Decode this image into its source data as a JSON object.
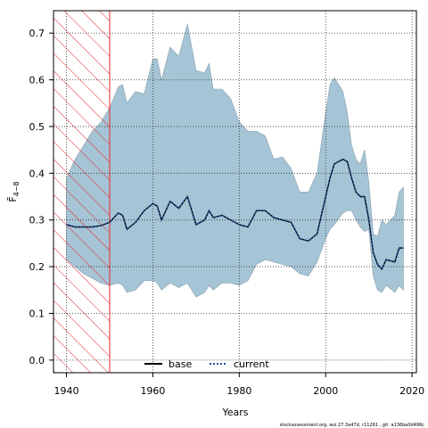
{
  "chart_data": {
    "type": "line",
    "xlabel": "Years",
    "ylabel": "F̄",
    "ylabel_sub": "4−8",
    "footer": "stockassessment.org, wsi.27.3a47d, r11261 , git: a136ba0d496c",
    "x": [
      1940,
      1942,
      1944,
      1946,
      1948,
      1950,
      1952,
      1953,
      1954,
      1956,
      1958,
      1960,
      1961,
      1962,
      1964,
      1966,
      1968,
      1970,
      1972,
      1973,
      1974,
      1976,
      1978,
      1980,
      1982,
      1984,
      1986,
      1988,
      1990,
      1992,
      1994,
      1996,
      1998,
      2000,
      2001,
      2002,
      2004,
      2005,
      2006,
      2007,
      2008,
      2009,
      2010,
      2011,
      2012,
      2013,
      2014,
      2016,
      2017,
      2018
    ],
    "band": {
      "color": "#a5c4d5",
      "edge": "#8aa0ad",
      "upper": [
        0.39,
        0.43,
        0.46,
        0.49,
        0.51,
        0.54,
        0.585,
        0.59,
        0.55,
        0.575,
        0.57,
        0.645,
        0.645,
        0.6,
        0.67,
        0.65,
        0.72,
        0.62,
        0.615,
        0.635,
        0.58,
        0.58,
        0.56,
        0.51,
        0.49,
        0.49,
        0.48,
        0.43,
        0.435,
        0.41,
        0.36,
        0.36,
        0.4,
        0.53,
        0.59,
        0.605,
        0.575,
        0.53,
        0.46,
        0.43,
        0.42,
        0.45,
        0.38,
        0.27,
        0.265,
        0.3,
        0.29,
        0.31,
        0.36,
        0.37
      ],
      "lower": [
        0.215,
        0.2,
        0.185,
        0.175,
        0.165,
        0.16,
        0.165,
        0.16,
        0.145,
        0.15,
        0.17,
        0.17,
        0.165,
        0.15,
        0.165,
        0.155,
        0.165,
        0.135,
        0.145,
        0.16,
        0.15,
        0.165,
        0.165,
        0.16,
        0.17,
        0.205,
        0.215,
        0.21,
        0.205,
        0.2,
        0.185,
        0.18,
        0.21,
        0.26,
        0.28,
        0.29,
        0.315,
        0.32,
        0.32,
        0.3,
        0.285,
        0.275,
        0.28,
        0.18,
        0.15,
        0.145,
        0.16,
        0.145,
        0.16,
        0.15
      ]
    },
    "series": [
      {
        "name": "base",
        "color": "#000000",
        "dash": false,
        "values": [
          0.29,
          0.285,
          0.285,
          0.285,
          0.288,
          0.295,
          0.315,
          0.31,
          0.28,
          0.295,
          0.32,
          0.335,
          0.33,
          0.3,
          0.34,
          0.325,
          0.35,
          0.29,
          0.3,
          0.32,
          0.305,
          0.31,
          0.3,
          0.29,
          0.285,
          0.32,
          0.32,
          0.305,
          0.3,
          0.295,
          0.26,
          0.255,
          0.27,
          0.35,
          0.39,
          0.42,
          0.43,
          0.425,
          0.39,
          0.36,
          0.35,
          0.35,
          0.3,
          0.23,
          0.205,
          0.195,
          0.215,
          0.21,
          0.24,
          0.24
        ]
      },
      {
        "name": "current",
        "color": "#1f4e9a",
        "dash": true,
        "values": [
          0.29,
          0.285,
          0.285,
          0.285,
          0.288,
          0.295,
          0.315,
          0.31,
          0.28,
          0.295,
          0.32,
          0.335,
          0.33,
          0.3,
          0.34,
          0.325,
          0.35,
          0.29,
          0.3,
          0.32,
          0.305,
          0.31,
          0.3,
          0.29,
          0.285,
          0.32,
          0.32,
          0.305,
          0.3,
          0.295,
          0.26,
          0.255,
          0.27,
          0.35,
          0.39,
          0.42,
          0.43,
          0.425,
          0.39,
          0.36,
          0.35,
          0.35,
          0.3,
          0.23,
          0.205,
          0.195,
          0.215,
          0.21,
          0.24,
          0.24
        ]
      }
    ],
    "hatch": {
      "range": [
        1937,
        1950
      ],
      "color": "#e8262b"
    },
    "xlim": [
      1937,
      2021
    ],
    "ylim": [
      -0.027,
      0.748
    ],
    "xticks": [
      1940,
      1960,
      1980,
      2000,
      2020
    ],
    "yticks": [
      {
        "value": 0,
        "label": "0.0"
      },
      0.1,
      0.2,
      0.3,
      0.4,
      0.5,
      0.6,
      0.7
    ],
    "grid": true
  }
}
